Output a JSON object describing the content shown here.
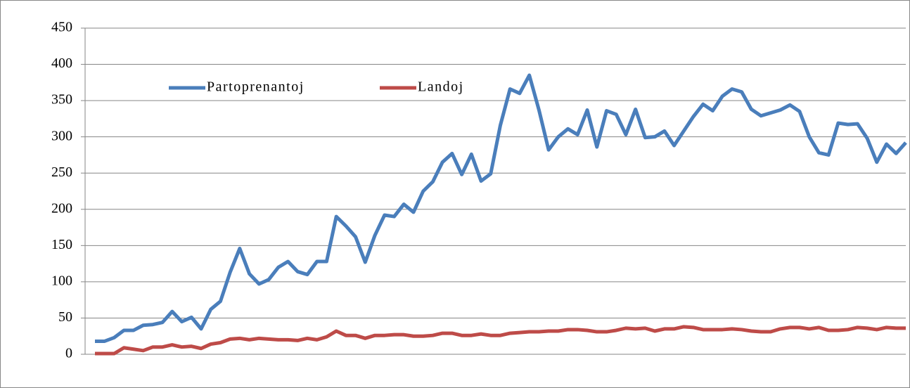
{
  "chart_data": {
    "type": "line",
    "categories": [
      null,
      null,
      null,
      null,
      null,
      null,
      null,
      null,
      null,
      null,
      null,
      null,
      null,
      null,
      null,
      null,
      null,
      null,
      null,
      null,
      null,
      null,
      null,
      null,
      null,
      null,
      null,
      null,
      null,
      null,
      null,
      null,
      null,
      null,
      null,
      null,
      null,
      null,
      null,
      null,
      null,
      null,
      null,
      null,
      null,
      null,
      null,
      null,
      null,
      null,
      null,
      null,
      null,
      null,
      null,
      null,
      null,
      null,
      null,
      null,
      null,
      null,
      null,
      null,
      null,
      null,
      null,
      null,
      null,
      null,
      null,
      null,
      null,
      null,
      null,
      null,
      null,
      null,
      null,
      null,
      null,
      null,
      null,
      null,
      null
    ],
    "series": [
      {
        "name": "Partoprenantoj",
        "color": "#4a7ebb",
        "values": [
          18,
          18,
          23,
          33,
          33,
          40,
          41,
          44,
          59,
          45,
          51,
          35,
          62,
          73,
          113,
          146,
          111,
          97,
          103,
          120,
          128,
          114,
          110,
          128,
          128,
          190,
          177,
          162,
          127,
          164,
          192,
          190,
          207,
          196,
          225,
          238,
          265,
          277,
          248,
          276,
          239,
          249,
          316,
          366,
          360,
          385,
          337,
          282,
          300,
          311,
          303,
          337,
          286,
          336,
          331,
          303,
          338,
          299,
          300,
          308,
          288,
          308,
          328,
          345,
          336,
          356,
          366,
          362,
          338,
          329,
          333,
          337,
          344,
          335,
          300,
          278,
          275,
          319,
          317,
          318,
          298,
          265,
          290,
          277,
          292
        ]
      },
      {
        "name": "Landoj",
        "color": "#be4b48",
        "values": [
          1,
          1,
          1,
          9,
          7,
          5,
          10,
          10,
          13,
          10,
          11,
          8,
          14,
          16,
          21,
          22,
          20,
          22,
          21,
          20,
          20,
          19,
          22,
          20,
          24,
          32,
          26,
          26,
          22,
          26,
          26,
          27,
          27,
          25,
          25,
          26,
          29,
          29,
          26,
          26,
          28,
          26,
          26,
          29,
          30,
          31,
          31,
          32,
          32,
          34,
          34,
          33,
          31,
          31,
          33,
          36,
          35,
          36,
          32,
          35,
          35,
          38,
          37,
          34,
          34,
          34,
          35,
          34,
          32,
          31,
          31,
          35,
          37,
          37,
          35,
          37,
          33,
          33,
          34,
          37,
          36,
          34,
          37,
          36,
          36
        ]
      }
    ],
    "ylim": [
      0,
      450
    ],
    "yticks": [
      0,
      50,
      100,
      150,
      200,
      250,
      300,
      350,
      400,
      450
    ],
    "grid": true,
    "legend": "top-left"
  }
}
